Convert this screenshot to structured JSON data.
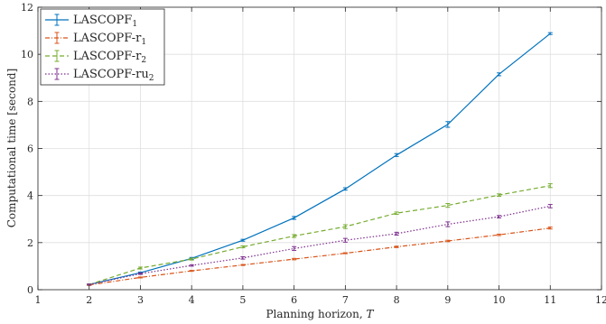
{
  "chart_data": {
    "type": "line",
    "title": "",
    "xlabel": "Planning horizon,",
    "xlabel_var": "T",
    "ylabel": "Computational time [second]",
    "xlim": [
      1,
      12
    ],
    "ylim": [
      0,
      12
    ],
    "xticks": [
      1,
      2,
      3,
      4,
      5,
      6,
      7,
      8,
      9,
      10,
      11,
      12
    ],
    "yticks": [
      0,
      2,
      4,
      6,
      8,
      10,
      12
    ],
    "grid": true,
    "legend_position": "top-left",
    "x": [
      2,
      3,
      4,
      5,
      6,
      7,
      8,
      9,
      10,
      11
    ],
    "series": [
      {
        "name": "LASCOPF",
        "name_sub": "1",
        "color": "#0072BD",
        "line_style": "solid",
        "values": [
          0.22,
          0.72,
          1.33,
          2.1,
          3.05,
          4.28,
          5.72,
          7.02,
          9.15,
          10.88
        ],
        "error": [
          0.02,
          0.03,
          0.04,
          0.04,
          0.06,
          0.05,
          0.06,
          0.12,
          0.06,
          0.04
        ]
      },
      {
        "name": "LASCOPF-r",
        "name_sub": "1",
        "color": "#D95319",
        "line_style": "dash-dot",
        "values": [
          0.2,
          0.52,
          0.8,
          1.05,
          1.3,
          1.55,
          1.82,
          2.07,
          2.33,
          2.62
        ],
        "error": [
          0.02,
          0.02,
          0.02,
          0.02,
          0.03,
          0.02,
          0.03,
          0.03,
          0.03,
          0.04
        ]
      },
      {
        "name": "LASCOPF-r",
        "name_sub": "2",
        "color": "#77AC30",
        "line_style": "dashed",
        "values": [
          0.22,
          0.92,
          1.3,
          1.82,
          2.28,
          2.68,
          3.25,
          3.58,
          4.02,
          4.42
        ],
        "error": [
          0.02,
          0.04,
          0.04,
          0.04,
          0.06,
          0.08,
          0.05,
          0.08,
          0.05,
          0.08
        ]
      },
      {
        "name": "LASCOPF-ru",
        "name_sub": "2",
        "color": "#7E2F8E",
        "line_style": "dotted",
        "values": [
          0.22,
          0.68,
          1.03,
          1.35,
          1.75,
          2.1,
          2.38,
          2.78,
          3.1,
          3.55
        ],
        "error": [
          0.02,
          0.03,
          0.03,
          0.05,
          0.08,
          0.08,
          0.06,
          0.1,
          0.05,
          0.07
        ]
      }
    ]
  }
}
